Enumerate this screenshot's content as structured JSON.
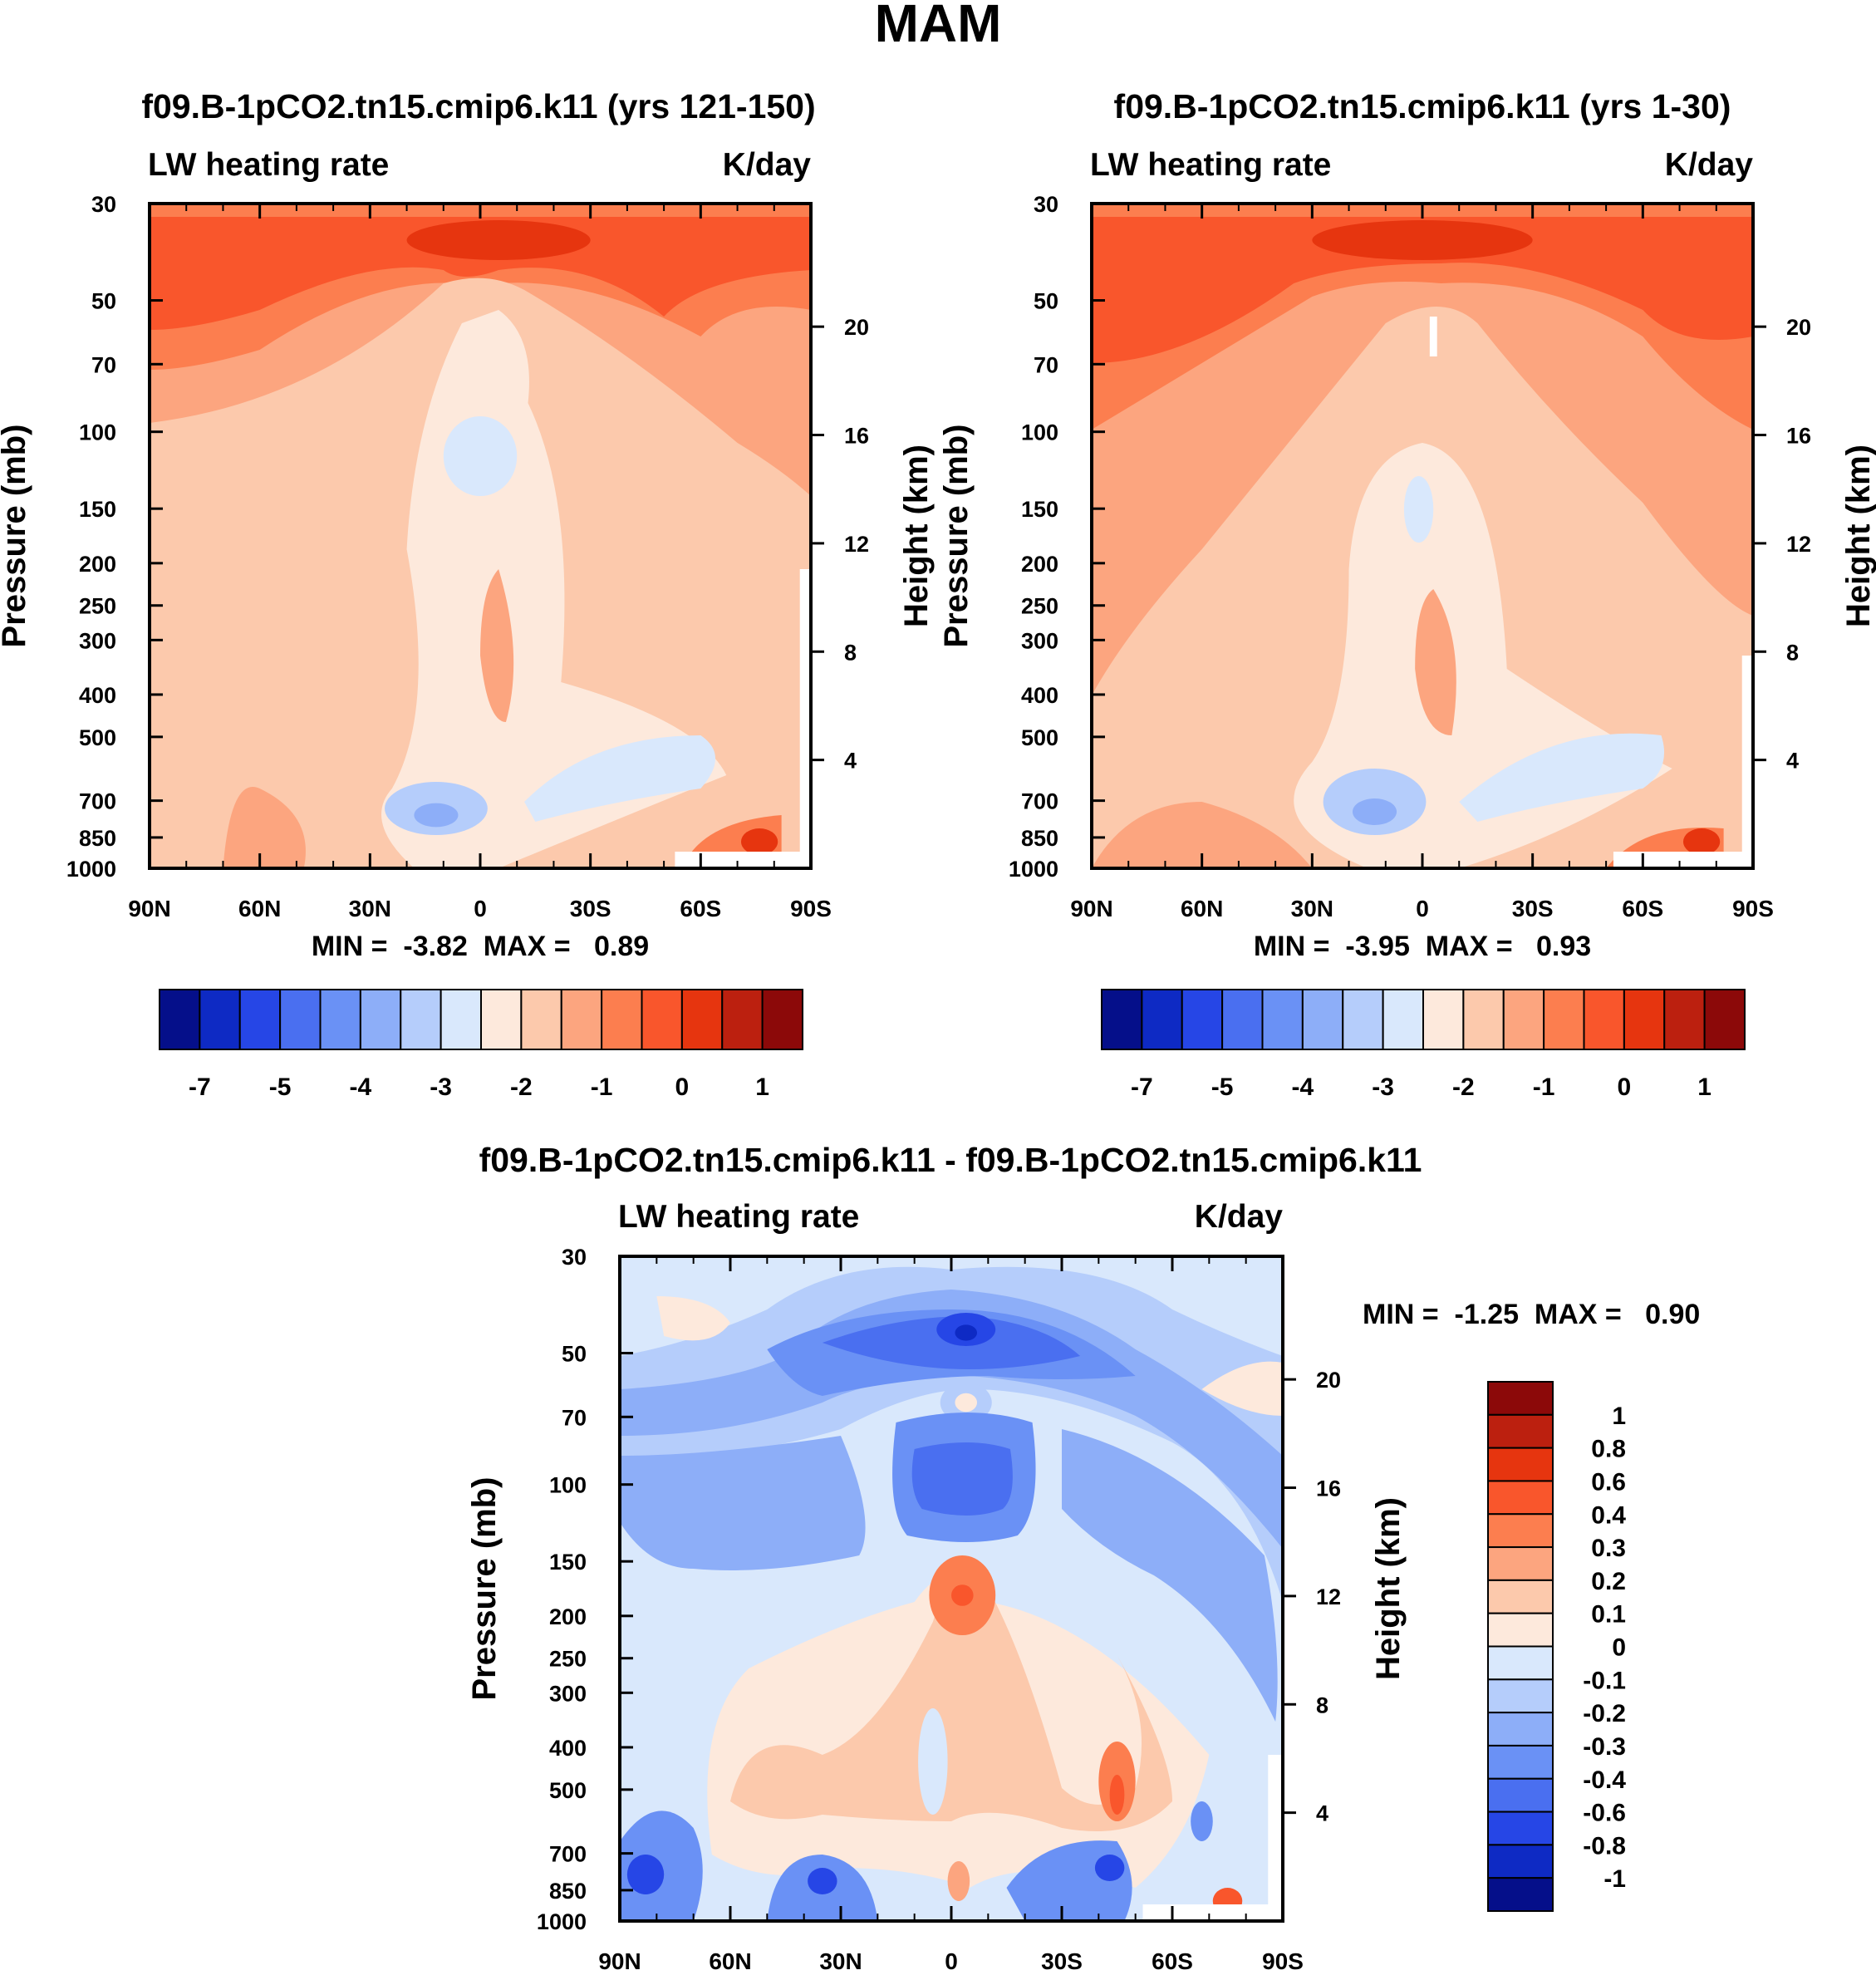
{
  "figure": {
    "title": "MAM"
  },
  "colors": {
    "pos": [
      "#fde9dc",
      "#fcc9ac",
      "#fca57f",
      "#fc7e4f",
      "#f9562c",
      "#e6350f",
      "#bc200f",
      "#8c0909"
    ],
    "neg": [
      "#d9e8fc",
      "#b5cdfb",
      "#8daef8",
      "#6a91f5",
      "#4a6ff0",
      "#2646e6",
      "#0e2ac4",
      "#050f8a"
    ],
    "missing": "#ffffff",
    "line": "#000000"
  },
  "chart_data": [
    {
      "id": "panel_a",
      "type": "heatmap",
      "subtitle": "f09.B-1pCO2.tn15.cmip6.k11 (yrs 121-150)",
      "left_string": "LW heating rate",
      "right_string": "K/day",
      "xlabel": "",
      "ylabel": "Pressure (mb)",
      "ylabel_right": "Height (km)",
      "x_ticks": [
        "90N",
        "60N",
        "30N",
        "0",
        "30S",
        "60S",
        "90S"
      ],
      "x_range": [
        -90,
        90
      ],
      "y_ticks": [
        "30",
        "50",
        "70",
        "100",
        "150",
        "200",
        "250",
        "300",
        "400",
        "500",
        "700",
        "850",
        "1000"
      ],
      "y_range_mb": [
        1000,
        30
      ],
      "height_ticks": [
        "20",
        "16",
        "12",
        "8",
        "4"
      ],
      "stats": "MIN =  -3.82  MAX =   0.89",
      "min": -3.82,
      "max": 0.89,
      "colorbar_labels": [
        "-7",
        "-5",
        "-4",
        "-3",
        "-2",
        "-1",
        "0",
        "1"
      ]
    },
    {
      "id": "panel_b",
      "type": "heatmap",
      "subtitle": "f09.B-1pCO2.tn15.cmip6.k11 (yrs 1-30)",
      "left_string": "LW heating rate",
      "right_string": "K/day",
      "xlabel": "",
      "ylabel": "Pressure (mb)",
      "ylabel_right": "Height (km)",
      "x_ticks": [
        "90N",
        "60N",
        "30N",
        "0",
        "30S",
        "60S",
        "90S"
      ],
      "x_range": [
        -90,
        90
      ],
      "y_ticks": [
        "30",
        "50",
        "70",
        "100",
        "150",
        "200",
        "250",
        "300",
        "400",
        "500",
        "700",
        "850",
        "1000"
      ],
      "y_range_mb": [
        1000,
        30
      ],
      "height_ticks": [
        "20",
        "16",
        "12",
        "8",
        "4"
      ],
      "stats": "MIN =  -3.95  MAX =   0.93",
      "min": -3.95,
      "max": 0.93,
      "colorbar_labels": [
        "-7",
        "-5",
        "-4",
        "-3",
        "-2",
        "-1",
        "0",
        "1"
      ]
    },
    {
      "id": "panel_diff",
      "type": "heatmap",
      "subtitle": "f09.B-1pCO2.tn15.cmip6.k11 - f09.B-1pCO2.tn15.cmip6.k11",
      "left_string": "LW heating rate",
      "right_string": "K/day",
      "xlabel": "",
      "ylabel": "Pressure (mb)",
      "ylabel_right": "Height (km)",
      "x_ticks": [
        "90N",
        "60N",
        "30N",
        "0",
        "30S",
        "60S",
        "90S"
      ],
      "x_range": [
        -90,
        90
      ],
      "y_ticks": [
        "30",
        "50",
        "70",
        "100",
        "150",
        "200",
        "250",
        "300",
        "400",
        "500",
        "700",
        "850",
        "1000"
      ],
      "y_range_mb": [
        1000,
        30
      ],
      "height_ticks": [
        "20",
        "16",
        "12",
        "8",
        "4"
      ],
      "stats": "MIN =  -1.25  MAX =   0.90",
      "min": -1.25,
      "max": 0.9,
      "colorbar_labels": [
        "1",
        "0.8",
        "0.6",
        "0.4",
        "0.3",
        "0.2",
        "0.1",
        "0",
        "-0.1",
        "-0.2",
        "-0.3",
        "-0.4",
        "-0.6",
        "-0.8",
        "-1"
      ]
    }
  ]
}
